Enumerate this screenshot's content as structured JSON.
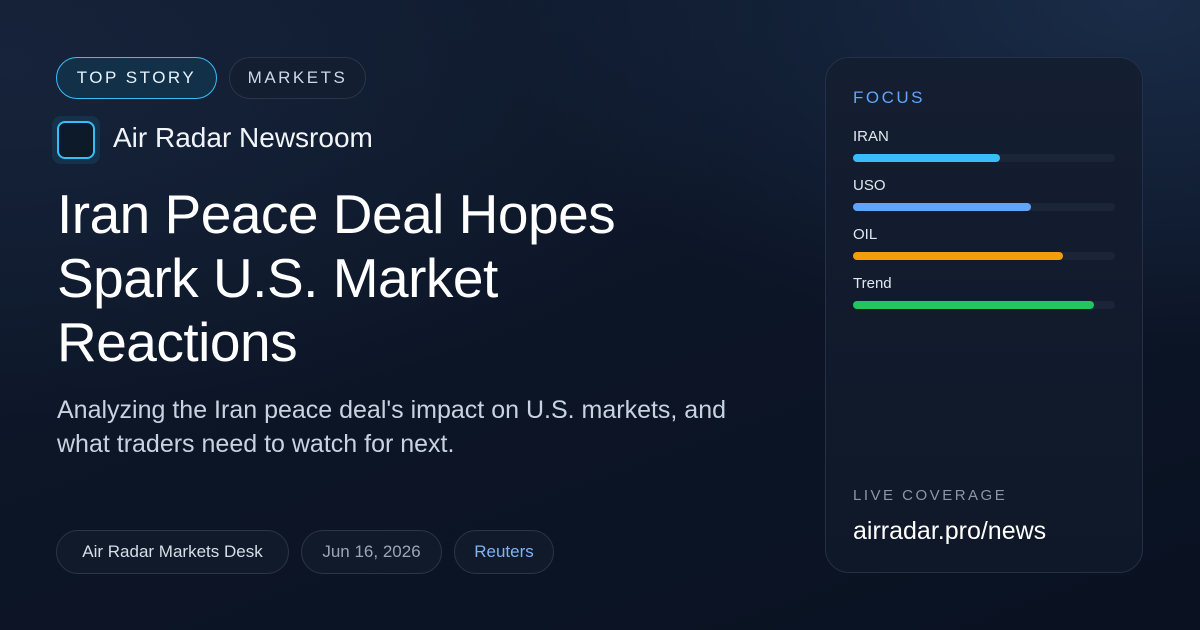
{
  "tags": [
    "TOP STORY",
    "MARKETS"
  ],
  "brand": "Air Radar Newsroom",
  "headline": "Iran Peace Deal Hopes Spark U.S. Market Reactions",
  "summary": "Analyzing the Iran peace deal's impact on U.S. markets, and what traders need to watch for next.",
  "meta": {
    "author": "Air Radar Markets Desk",
    "date": "Jun 16, 2026",
    "source": "Reuters"
  },
  "focus": {
    "title": "FOCUS",
    "items": [
      {
        "label": "IRAN",
        "value": 0.56,
        "color": "#38bdf8"
      },
      {
        "label": "USO",
        "value": 0.68,
        "color": "#60a5fa"
      },
      {
        "label": "OIL",
        "value": 0.8,
        "color": "#f59e0b"
      },
      {
        "label": "Trend",
        "value": 0.92,
        "color": "#22c55e"
      }
    ]
  },
  "footer": {
    "kicker": "LIVE COVERAGE",
    "url": "airradar.pro/news"
  }
}
